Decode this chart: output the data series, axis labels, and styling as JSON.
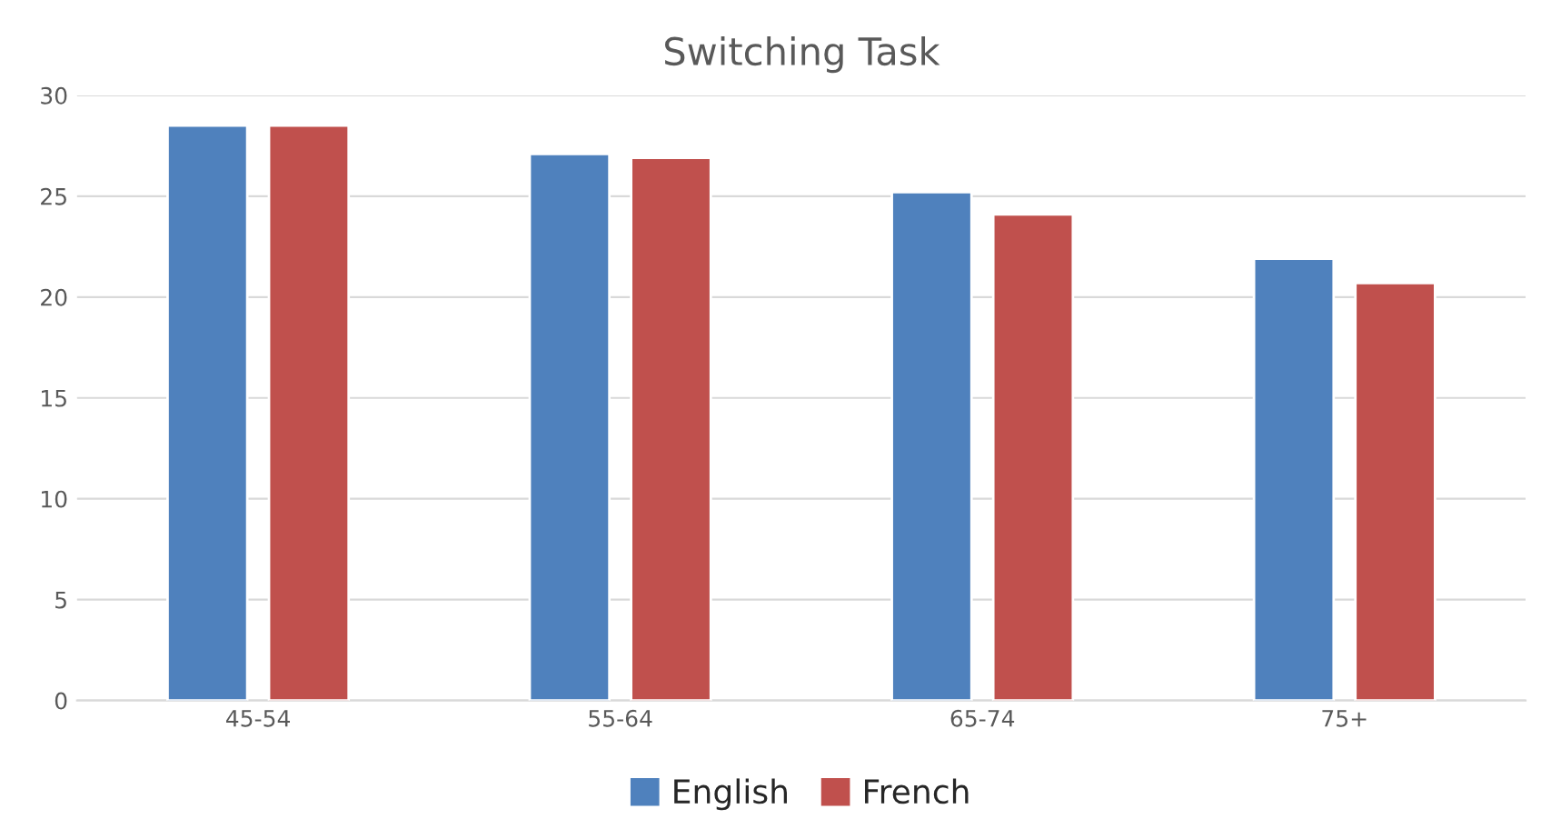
{
  "chart_data": {
    "type": "bar",
    "title": "Switching Task",
    "categories": [
      "45-54",
      "55-64",
      "65-74",
      "75+"
    ],
    "series": [
      {
        "name": "English",
        "color": "#4f81bd",
        "values": [
          28.5,
          27.1,
          25.2,
          21.9
        ]
      },
      {
        "name": "French",
        "color": "#c0504d",
        "values": [
          28.5,
          26.9,
          24.1,
          20.7
        ]
      }
    ],
    "ylim": [
      0,
      30
    ],
    "yticks": [
      0,
      5,
      10,
      15,
      20,
      25,
      30
    ],
    "grid": "y",
    "legend": "bottom"
  }
}
